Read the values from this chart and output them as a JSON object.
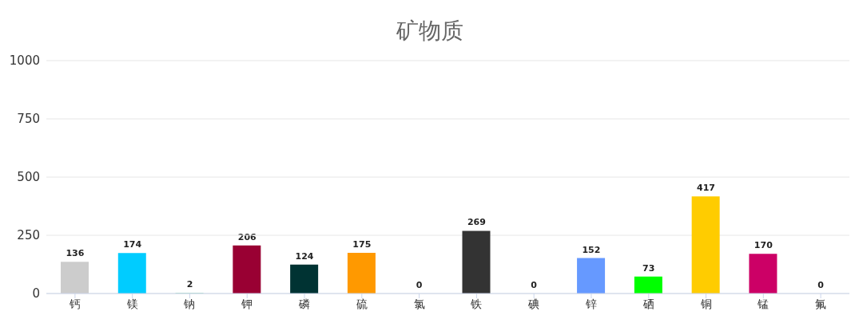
{
  "chart_data": {
    "type": "bar",
    "title": "矿物质",
    "categories": [
      "钙",
      "镁",
      "钠",
      "钾",
      "磷",
      "硫",
      "氯",
      "铁",
      "碘",
      "锌",
      "硒",
      "铜",
      "锰",
      "氟"
    ],
    "values": [
      136,
      174,
      2,
      206,
      124,
      175,
      0,
      269,
      0,
      152,
      73,
      417,
      170,
      0
    ],
    "colors": [
      "#cccccc",
      "#00ccff",
      "#66cc99",
      "#990033",
      "#003333",
      "#ff9900",
      "#999999",
      "#333333",
      "#996699",
      "#6699ff",
      "#00ff00",
      "#ffcc00",
      "#cc0066",
      "#669933"
    ],
    "ylim": [
      0,
      1000
    ],
    "yticks": [
      0,
      250,
      500,
      750,
      1000
    ],
    "grid": "y",
    "data_labels": true
  }
}
